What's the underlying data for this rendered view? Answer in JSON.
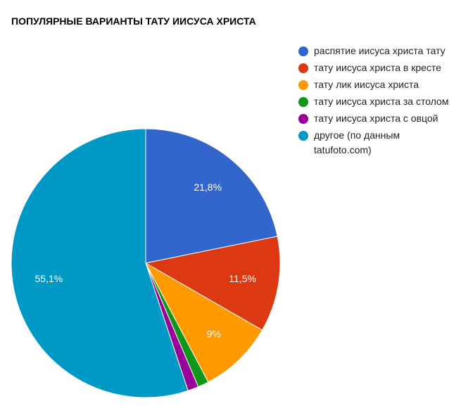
{
  "chart_data": {
    "type": "pie",
    "title": "ПОПУЛЯРНЫЕ ВАРИАНТЫ ТАТУ ИИСУСА ХРИСТА",
    "legend_position": "right",
    "slices": [
      {
        "label": "распятие иисуса христа тату",
        "value": 21.8,
        "display": "21,8%",
        "color": "#3366cc"
      },
      {
        "label": "тату иисуса христа в кресте",
        "value": 11.5,
        "display": "11,5%",
        "color": "#dc3912"
      },
      {
        "label": "тату лик иисуса христа",
        "value": 9.0,
        "display": "9%",
        "color": "#ff9900"
      },
      {
        "label": "тату иисуса христа за столом",
        "value": 1.3,
        "display": "",
        "color": "#109618"
      },
      {
        "label": "тату иисуса христа с овцой",
        "value": 1.3,
        "display": "",
        "color": "#990099"
      },
      {
        "label": "другое (по данным tatufoto.com)",
        "value": 55.1,
        "display": "55,1%",
        "color": "#0099c6"
      }
    ]
  }
}
